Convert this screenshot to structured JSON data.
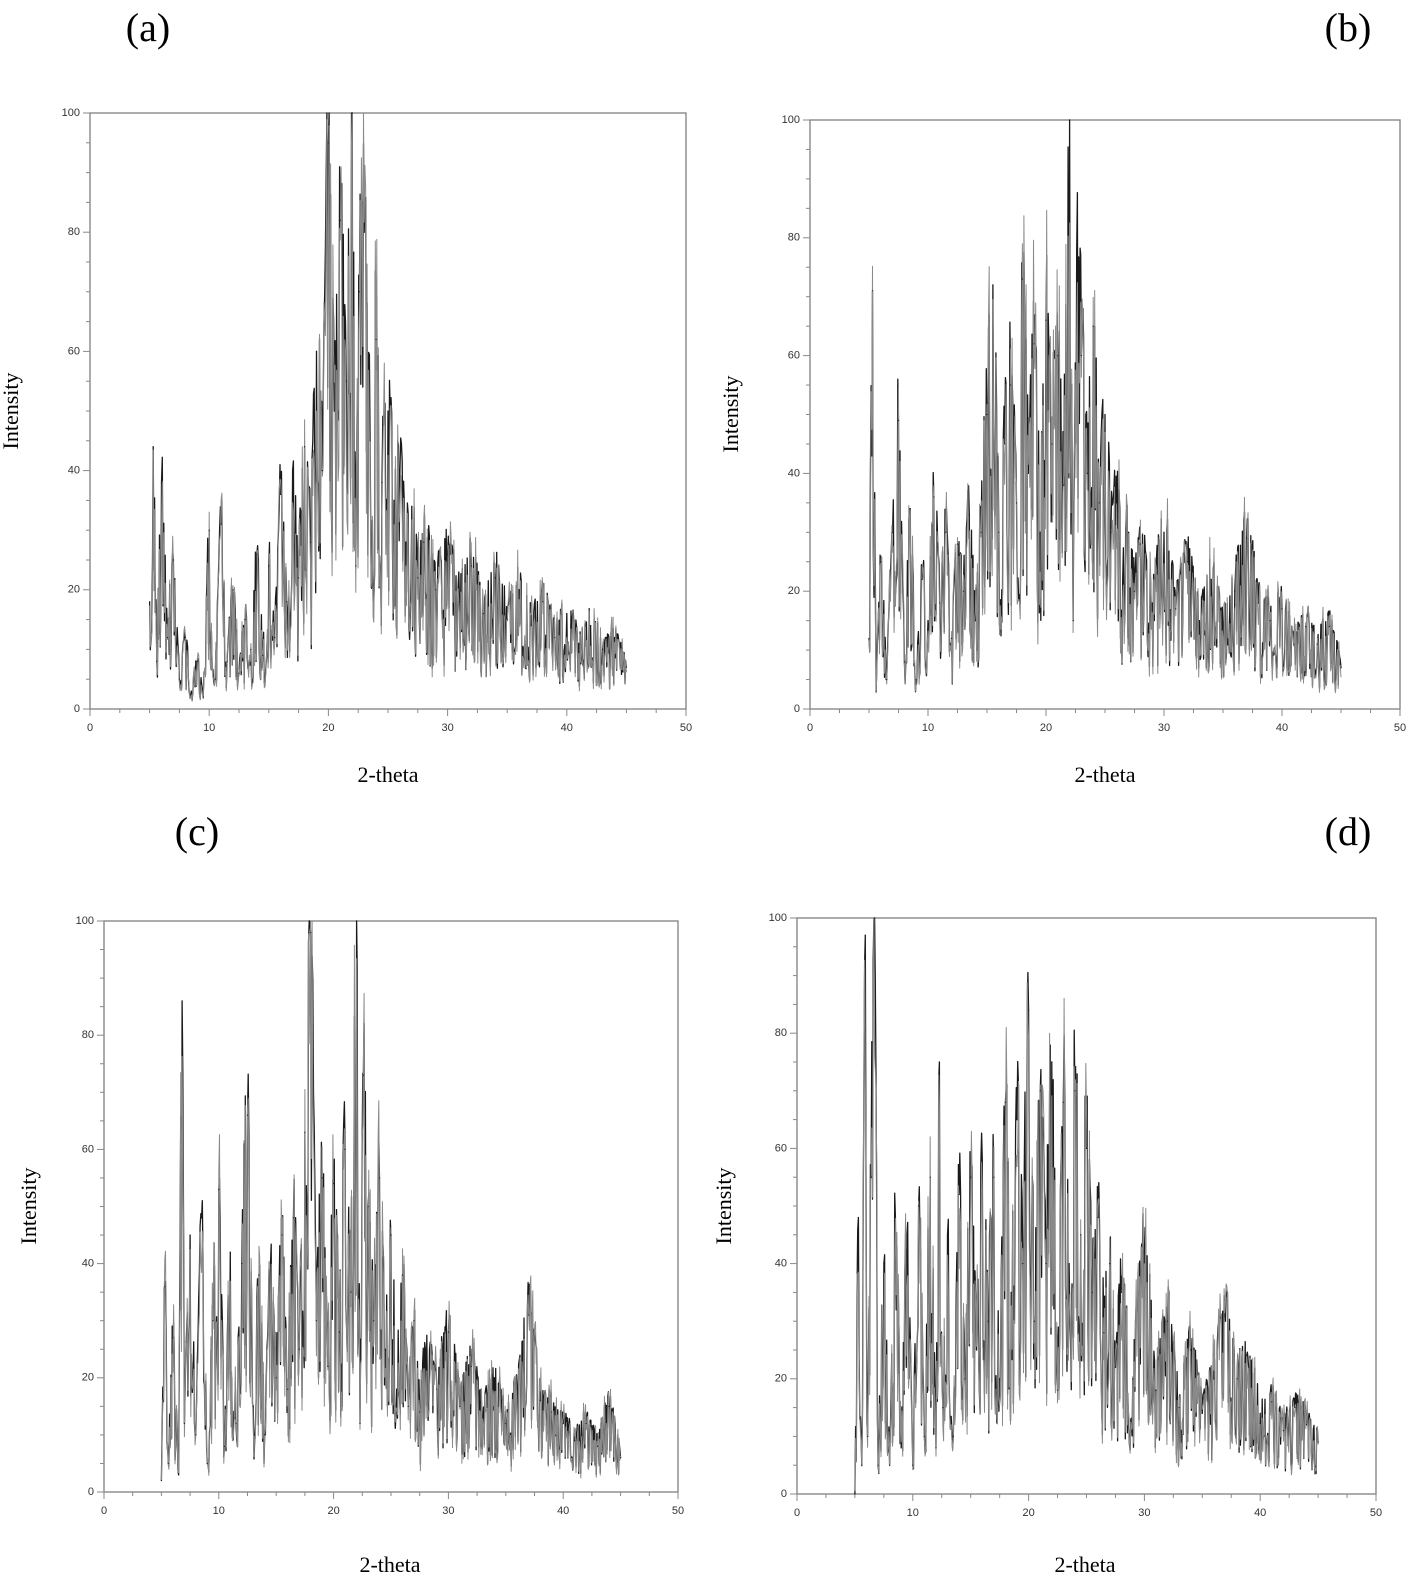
{
  "chart_data": [
    {
      "panel": "(a)",
      "type": "line",
      "xlabel": "2-theta",
      "ylabel": "Intensity",
      "xlim": [
        0,
        50
      ],
      "ylim": [
        0,
        100
      ],
      "xticks": [
        0,
        10,
        20,
        30,
        40,
        50
      ],
      "yticks": [
        0,
        20,
        40,
        60,
        80,
        100
      ],
      "x_range": [
        5,
        45
      ],
      "grid": false,
      "series": [
        {
          "values": [
            [
              5,
              18
            ],
            [
              5.3,
              44
            ],
            [
              5.6,
              8
            ],
            [
              6,
              38
            ],
            [
              6.5,
              12
            ],
            [
              7,
              25
            ],
            [
              7.5,
              5
            ],
            [
              8,
              12
            ],
            [
              8.5,
              3
            ],
            [
              9,
              8
            ],
            [
              9.5,
              2
            ],
            [
              10,
              30
            ],
            [
              10.5,
              5
            ],
            [
              11,
              31
            ],
            [
              11.5,
              8
            ],
            [
              12,
              20
            ],
            [
              12.5,
              6
            ],
            [
              13,
              15
            ],
            [
              13.5,
              10
            ],
            [
              14,
              26
            ],
            [
              14.5,
              9
            ],
            [
              15,
              24
            ],
            [
              15.5,
              12
            ],
            [
              16,
              36
            ],
            [
              16.5,
              18
            ],
            [
              17,
              40
            ],
            [
              17.5,
              22
            ],
            [
              18,
              44
            ],
            [
              18.5,
              28
            ],
            [
              19,
              60
            ],
            [
              19.5,
              40
            ],
            [
              20,
              95
            ],
            [
              20.5,
              50
            ],
            [
              21,
              82
            ],
            [
              21.5,
              55
            ],
            [
              22,
              100
            ],
            [
              22.3,
              24
            ],
            [
              22.6,
              70
            ],
            [
              23,
              80
            ],
            [
              23.5,
              45
            ],
            [
              24,
              62
            ],
            [
              24.5,
              38
            ],
            [
              25,
              50
            ],
            [
              25.5,
              35
            ],
            [
              26,
              40
            ],
            [
              26.5,
              28
            ],
            [
              27,
              34
            ],
            [
              27.5,
              22
            ],
            [
              28,
              28
            ],
            [
              29,
              20
            ],
            [
              30,
              26
            ],
            [
              31,
              18
            ],
            [
              32,
              24
            ],
            [
              33,
              16
            ],
            [
              34,
              22
            ],
            [
              35,
              15
            ],
            [
              36,
              20
            ],
            [
              37,
              14
            ],
            [
              38,
              18
            ],
            [
              39,
              12
            ],
            [
              40,
              16
            ],
            [
              41,
              11
            ],
            [
              42,
              14
            ],
            [
              43,
              10
            ],
            [
              44,
              12
            ],
            [
              45,
              7
            ]
          ]
        }
      ]
    },
    {
      "panel": "(b)",
      "type": "line",
      "xlabel": "2-theta",
      "ylabel": "Intensity",
      "xlim": [
        0,
        50
      ],
      "ylim": [
        0,
        100
      ],
      "xticks": [
        0,
        10,
        20,
        30,
        40,
        50
      ],
      "yticks": [
        0,
        20,
        40,
        60,
        80,
        100
      ],
      "x_range": [
        5,
        45
      ],
      "grid": false,
      "series": [
        {
          "values": [
            [
              5,
              12
            ],
            [
              5.3,
              71
            ],
            [
              5.6,
              3
            ],
            [
              6,
              25
            ],
            [
              6.5,
              5
            ],
            [
              7,
              30
            ],
            [
              7.5,
              49
            ],
            [
              8,
              8
            ],
            [
              8.5,
              34
            ],
            [
              9,
              5
            ],
            [
              9.5,
              22
            ],
            [
              10,
              15
            ],
            [
              10.5,
              36
            ],
            [
              11,
              18
            ],
            [
              11.5,
              30
            ],
            [
              12,
              12
            ],
            [
              12.5,
              28
            ],
            [
              13,
              20
            ],
            [
              13.5,
              33
            ],
            [
              14,
              15
            ],
            [
              14.5,
              30
            ],
            [
              15,
              50
            ],
            [
              15.5,
              72
            ],
            [
              16,
              30
            ],
            [
              16.5,
              45
            ],
            [
              17,
              55
            ],
            [
              17.5,
              35
            ],
            [
              18,
              73
            ],
            [
              18.5,
              40
            ],
            [
              19,
              62
            ],
            [
              19.5,
              30
            ],
            [
              20,
              66
            ],
            [
              20.5,
              45
            ],
            [
              21,
              60
            ],
            [
              21.5,
              38
            ],
            [
              22,
              100
            ],
            [
              22.3,
              15
            ],
            [
              22.6,
              78
            ],
            [
              23,
              60
            ],
            [
              23.5,
              40
            ],
            [
              24,
              65
            ],
            [
              24.5,
              35
            ],
            [
              25,
              50
            ],
            [
              25.5,
              30
            ],
            [
              26,
              35
            ],
            [
              26.5,
              22
            ],
            [
              27,
              30
            ],
            [
              27.5,
              20
            ],
            [
              28,
              28
            ],
            [
              29,
              18
            ],
            [
              30,
              30
            ],
            [
              31,
              17
            ],
            [
              32,
              25
            ],
            [
              33,
              15
            ],
            [
              34,
              22
            ],
            [
              35,
              14
            ],
            [
              36,
              20
            ],
            [
              37,
              29
            ],
            [
              38,
              18
            ],
            [
              39,
              15
            ],
            [
              40,
              17
            ],
            [
              41,
              11
            ],
            [
              42,
              14
            ],
            [
              43,
              11
            ],
            [
              44,
              14
            ],
            [
              45,
              7
            ]
          ]
        }
      ]
    },
    {
      "panel": "(c)",
      "type": "line",
      "xlabel": "2-theta",
      "ylabel": "Intensity",
      "xlim": [
        0,
        50
      ],
      "ylim": [
        0,
        100
      ],
      "xticks": [
        0,
        10,
        20,
        30,
        40,
        50
      ],
      "yticks": [
        0,
        20,
        40,
        60,
        80,
        100
      ],
      "x_range": [
        5,
        45
      ],
      "grid": false,
      "series": [
        {
          "values": [
            [
              5,
              2
            ],
            [
              5.3,
              36
            ],
            [
              5.6,
              5
            ],
            [
              6,
              27
            ],
            [
              6.5,
              3
            ],
            [
              6.8,
              86
            ],
            [
              7,
              12
            ],
            [
              7.5,
              45
            ],
            [
              8,
              10
            ],
            [
              8.5,
              48
            ],
            [
              9,
              5
            ],
            [
              9.5,
              30
            ],
            [
              10,
              53
            ],
            [
              10.5,
              8
            ],
            [
              11,
              42
            ],
            [
              11.5,
              12
            ],
            [
              12,
              40
            ],
            [
              12.5,
              66
            ],
            [
              13,
              15
            ],
            [
              13.5,
              38
            ],
            [
              14,
              10
            ],
            [
              14.5,
              40
            ],
            [
              15,
              20
            ],
            [
              15.5,
              45
            ],
            [
              16,
              18
            ],
            [
              16.5,
              48
            ],
            [
              17,
              25
            ],
            [
              17.5,
              63
            ],
            [
              18,
              98
            ],
            [
              18.5,
              30
            ],
            [
              19,
              55
            ],
            [
              19.5,
              22
            ],
            [
              20,
              54
            ],
            [
              20.5,
              28
            ],
            [
              21,
              60
            ],
            [
              21.5,
              35
            ],
            [
              22,
              100
            ],
            [
              22.3,
              12
            ],
            [
              22.6,
              73
            ],
            [
              23,
              50
            ],
            [
              23.5,
              30
            ],
            [
              24,
              55
            ],
            [
              24.5,
              25
            ],
            [
              25,
              45
            ],
            [
              25.5,
              18
            ],
            [
              26,
              38
            ],
            [
              26.5,
              15
            ],
            [
              27,
              30
            ],
            [
              27.5,
              14
            ],
            [
              28,
              25
            ],
            [
              29,
              18
            ],
            [
              30,
              28
            ],
            [
              31,
              15
            ],
            [
              32,
              22
            ],
            [
              33,
              13
            ],
            [
              34,
              20
            ],
            [
              35,
              12
            ],
            [
              36,
              18
            ],
            [
              37,
              31
            ],
            [
              38,
              16
            ],
            [
              39,
              14
            ],
            [
              40,
              12
            ],
            [
              41,
              9
            ],
            [
              42,
              12
            ],
            [
              43,
              8
            ],
            [
              44,
              15
            ],
            [
              45,
              6
            ]
          ]
        }
      ]
    },
    {
      "panel": "(d)",
      "type": "line",
      "xlabel": "2-theta",
      "ylabel": "Intensity",
      "xlim": [
        0,
        50
      ],
      "ylim": [
        0,
        100
      ],
      "xticks": [
        0,
        10,
        20,
        30,
        40,
        50
      ],
      "yticks": [
        0,
        20,
        40,
        60,
        80,
        100
      ],
      "x_range": [
        5,
        45
      ],
      "grid": false,
      "series": [
        {
          "values": [
            [
              5,
              0
            ],
            [
              5.3,
              48
            ],
            [
              5.6,
              5
            ],
            [
              5.9,
              97
            ],
            [
              6.1,
              10
            ],
            [
              6.4,
              55
            ],
            [
              6.7,
              100
            ],
            [
              7,
              5
            ],
            [
              7.5,
              40
            ],
            [
              8,
              5
            ],
            [
              8.5,
              48
            ],
            [
              9,
              8
            ],
            [
              9.5,
              45
            ],
            [
              10,
              5
            ],
            [
              10.5,
              50
            ],
            [
              11,
              10
            ],
            [
              11.5,
              55
            ],
            [
              12,
              8
            ],
            [
              12.3,
              75
            ],
            [
              12.6,
              15
            ],
            [
              13,
              45
            ],
            [
              13.5,
              10
            ],
            [
              14,
              52
            ],
            [
              14.5,
              20
            ],
            [
              15,
              55
            ],
            [
              15.5,
              25
            ],
            [
              16,
              58
            ],
            [
              16.5,
              30
            ],
            [
              17,
              55
            ],
            [
              17.5,
              20
            ],
            [
              18,
              68
            ],
            [
              18.5,
              35
            ],
            [
              19,
              65
            ],
            [
              19.5,
              40
            ],
            [
              20,
              84
            ],
            [
              20.5,
              30
            ],
            [
              21,
              70
            ],
            [
              21.5,
              40
            ],
            [
              22,
              75
            ],
            [
              22.5,
              18
            ],
            [
              23,
              68
            ],
            [
              23.5,
              40
            ],
            [
              24,
              70
            ],
            [
              24.5,
              45
            ],
            [
              25,
              60
            ],
            [
              25.5,
              35
            ],
            [
              26,
              48
            ],
            [
              26.5,
              28
            ],
            [
              27,
              40
            ],
            [
              27.5,
              22
            ],
            [
              28,
              35
            ],
            [
              29,
              20
            ],
            [
              30,
              42
            ],
            [
              31,
              18
            ],
            [
              32,
              30
            ],
            [
              33,
              15
            ],
            [
              34,
              25
            ],
            [
              35,
              14
            ],
            [
              36,
              20
            ],
            [
              37,
              30
            ],
            [
              38,
              20
            ],
            [
              39,
              22
            ],
            [
              40,
              14
            ],
            [
              41,
              16
            ],
            [
              42,
              11
            ],
            [
              43,
              15
            ],
            [
              44,
              12
            ],
            [
              45,
              9
            ]
          ]
        }
      ]
    }
  ]
}
